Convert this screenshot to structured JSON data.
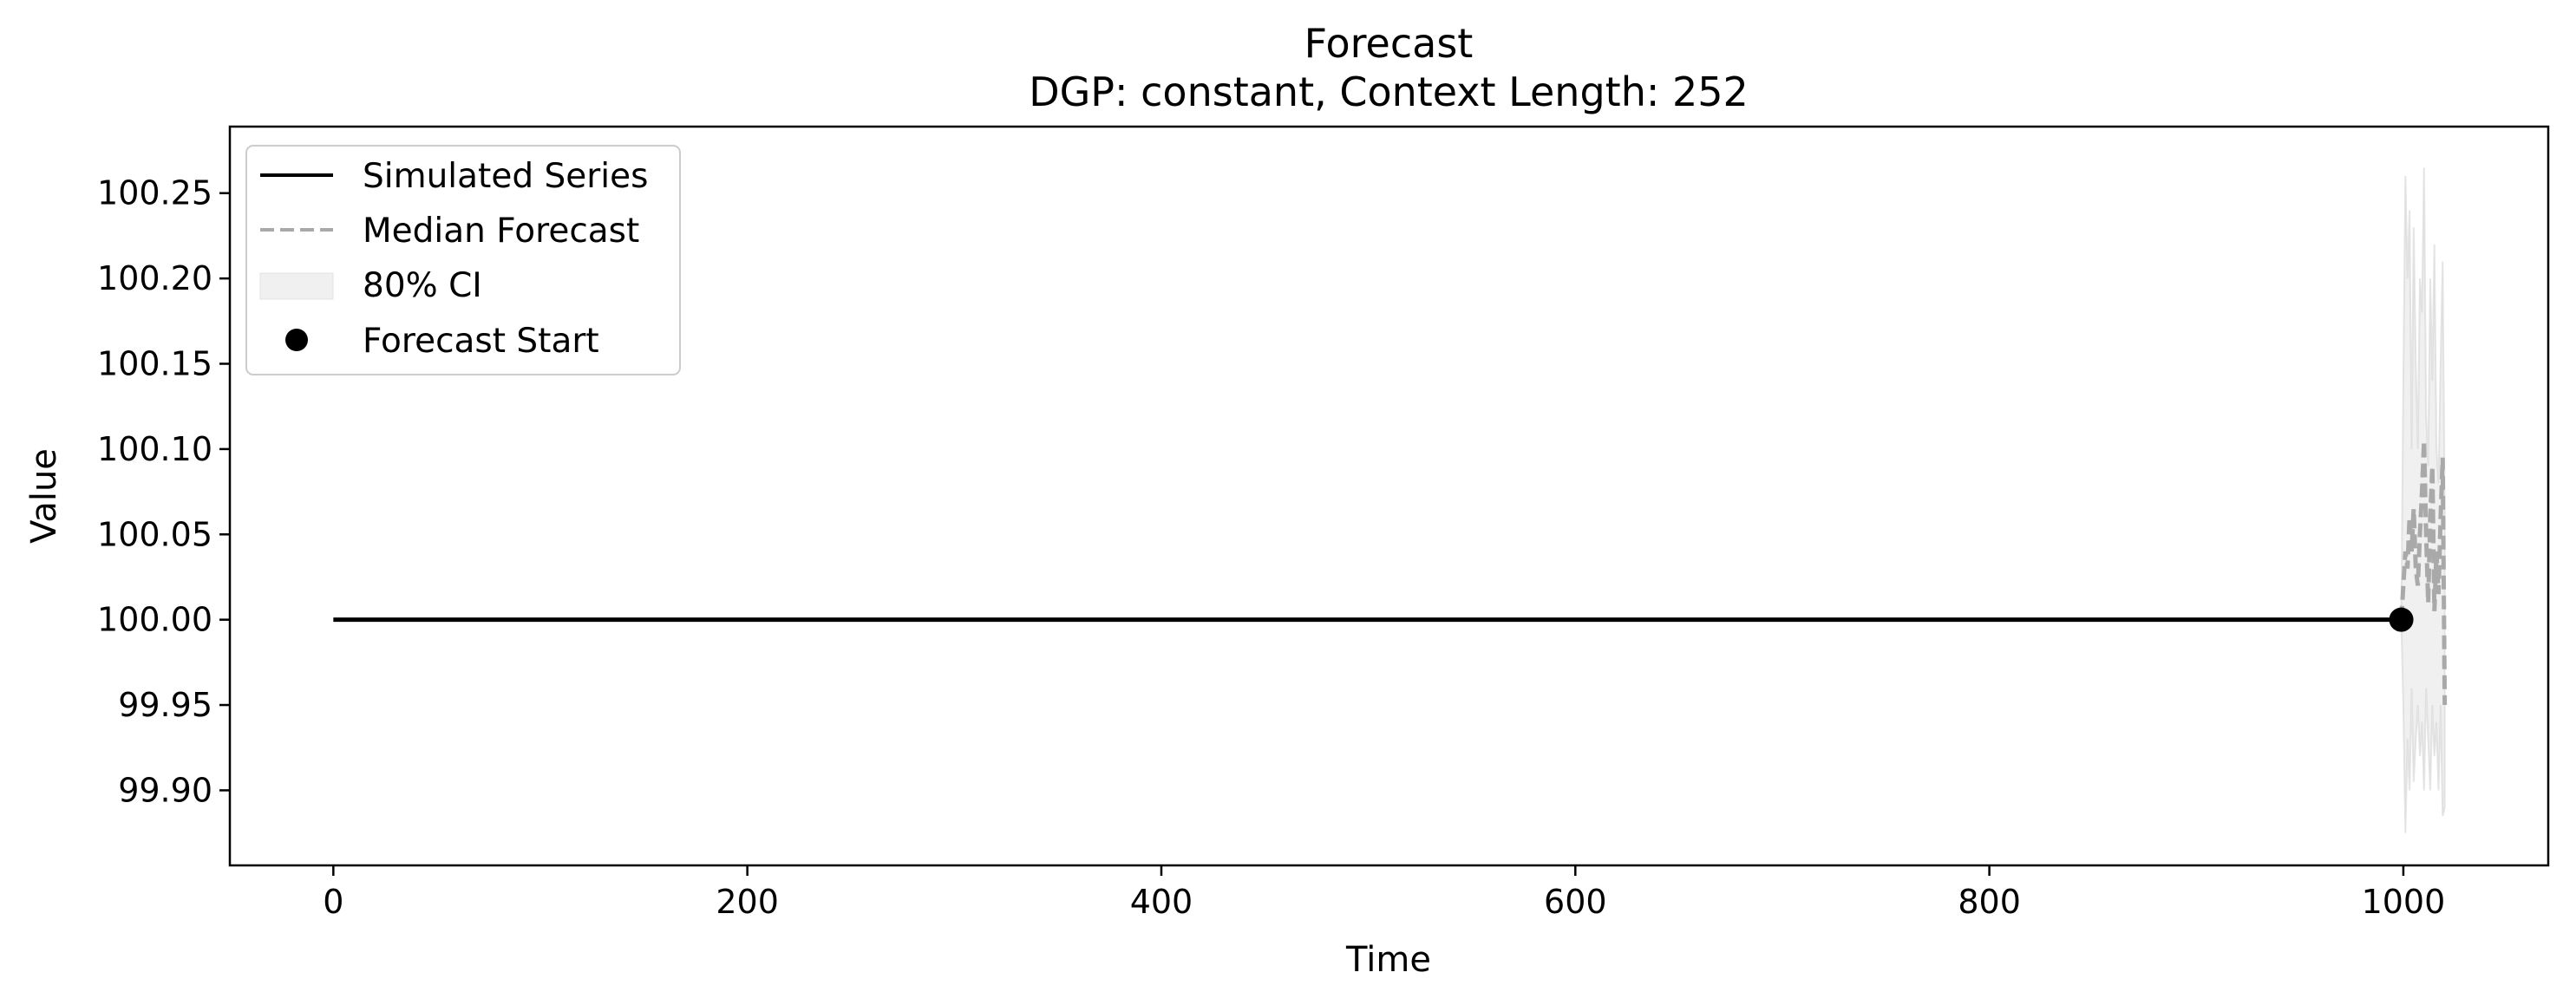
{
  "chart_data": {
    "type": "line",
    "title": "Forecast",
    "subtitle": "DGP: constant, Context Length: 252",
    "xlabel": "Time",
    "ylabel": "Value",
    "xlim": [
      -50,
      1070
    ],
    "ylim": [
      99.856,
      100.289
    ],
    "xticks": [
      0,
      200,
      400,
      600,
      800,
      1000
    ],
    "yticks": [
      99.9,
      99.95,
      100.0,
      100.05,
      100.1,
      100.15,
      100.2,
      100.25
    ],
    "ytick_labels": [
      "99.90",
      "99.95",
      "100.00",
      "100.05",
      "100.10",
      "100.15",
      "100.20",
      "100.25"
    ],
    "grid": false,
    "legend_position": "top-left",
    "legend": [
      {
        "key": "simulated",
        "label": "Simulated Series",
        "style": "solid-line",
        "color": "#000000"
      },
      {
        "key": "median",
        "label": "Median Forecast",
        "style": "dashed-line",
        "color": "#a9a9a9"
      },
      {
        "key": "ci",
        "label": "80% CI",
        "style": "band",
        "color": "#d3d3d3"
      },
      {
        "key": "start",
        "label": "Forecast Start",
        "style": "marker",
        "color": "#000000"
      }
    ],
    "series": [
      {
        "name": "Simulated Series",
        "x": [
          0,
          999
        ],
        "y": [
          100.0,
          100.0
        ]
      }
    ],
    "forecast_start": {
      "x": 999,
      "y": 100.0
    },
    "forecast": {
      "x": [
        999,
        1000,
        1001,
        1002,
        1003,
        1004,
        1005,
        1006,
        1007,
        1008,
        1009,
        1010,
        1011,
        1012,
        1013,
        1014,
        1015,
        1016,
        1017,
        1018,
        1019,
        1020
      ],
      "median": [
        100.0,
        100.02,
        100.04,
        100.03,
        100.06,
        100.04,
        100.065,
        100.03,
        100.02,
        100.05,
        100.075,
        100.105,
        100.05,
        100.01,
        100.06,
        100.09,
        100.005,
        100.04,
        100.015,
        100.06,
        100.095,
        99.95
      ],
      "lower": [
        100.0,
        99.95,
        99.875,
        99.93,
        99.9,
        99.96,
        99.905,
        99.93,
        99.95,
        99.92,
        99.94,
        99.9,
        99.96,
        99.93,
        99.9,
        99.95,
        99.92,
        99.94,
        99.9,
        99.95,
        99.885,
        99.89
      ],
      "upper": [
        100.0,
        100.14,
        100.26,
        100.2,
        100.24,
        100.1,
        100.23,
        100.15,
        100.1,
        100.2,
        100.18,
        100.265,
        100.12,
        100.09,
        100.2,
        100.14,
        100.22,
        100.1,
        100.08,
        100.15,
        100.21,
        100.06
      ]
    }
  }
}
